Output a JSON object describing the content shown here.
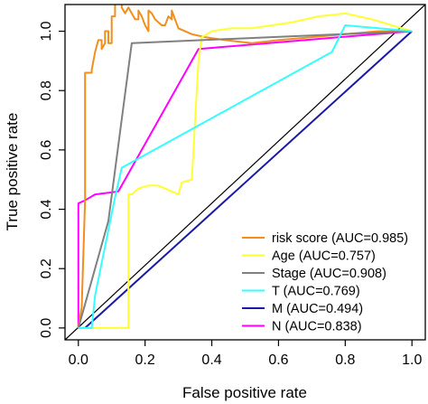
{
  "chart_data": {
    "type": "line",
    "title": "",
    "xlabel": "False positive rate",
    "ylabel": "True positive rate",
    "xlim": [
      -0.04,
      1.04
    ],
    "ylim": [
      -0.04,
      1.09
    ],
    "x_ticks": [
      "0.0",
      "0.2",
      "0.4",
      "0.6",
      "0.8",
      "1.0"
    ],
    "y_ticks": [
      "0.0",
      "0.2",
      "0.4",
      "0.6",
      "0.8",
      "1.0"
    ],
    "grid": false,
    "legend_position": "bottom-right",
    "diagonal": {
      "x": [
        -0.04,
        1.04
      ],
      "y": [
        -0.04,
        1.09
      ],
      "color": "#000000"
    },
    "series": [
      {
        "name": "risk score (AUC=0.985)",
        "color": "#F28E1C",
        "x": [
          0.0,
          0.0,
          0.01,
          0.02,
          0.02,
          0.03,
          0.03,
          0.04,
          0.04,
          0.05,
          0.06,
          0.07,
          0.07,
          0.08,
          0.08,
          0.09,
          0.09,
          0.1,
          0.1,
          0.11,
          0.11,
          0.12,
          0.13,
          0.13,
          0.14,
          0.15,
          0.16,
          0.17,
          0.18,
          0.18,
          0.19,
          0.2,
          0.21,
          0.21,
          0.22,
          0.23,
          0.24,
          0.25,
          0.26,
          0.27,
          0.28,
          0.28,
          0.3,
          0.34,
          0.38,
          0.44,
          0.52,
          0.6,
          0.7,
          0.8,
          0.9,
          1.0
        ],
        "y": [
          0.0,
          0.0,
          0.07,
          0.43,
          0.86,
          0.86,
          0.86,
          0.86,
          0.87,
          0.93,
          0.97,
          0.97,
          0.94,
          0.96,
          1.0,
          1.0,
          0.96,
          0.96,
          1.05,
          1.05,
          1.14,
          1.11,
          1.1,
          1.08,
          1.06,
          1.08,
          1.06,
          1.04,
          1.04,
          1.07,
          1.05,
          1.02,
          1.0,
          1.07,
          1.06,
          1.04,
          1.03,
          1.02,
          1.02,
          1.05,
          1.04,
          1.07,
          1.01,
          0.99,
          0.98,
          0.97,
          0.96,
          0.97,
          0.98,
          0.99,
          1.0,
          1.0
        ]
      },
      {
        "name": "Age (AUC=0.757)",
        "color": "#FFFF33",
        "x": [
          0.0,
          0.15,
          0.15,
          0.16,
          0.18,
          0.21,
          0.24,
          0.28,
          0.3,
          0.31,
          0.34,
          0.35,
          0.36,
          0.37,
          0.4,
          0.46,
          0.52,
          0.58,
          0.64,
          0.72,
          0.8,
          0.88,
          0.94,
          1.0
        ],
        "y": [
          0.0,
          0.0,
          0.45,
          0.45,
          0.47,
          0.48,
          0.48,
          0.46,
          0.45,
          0.49,
          0.5,
          0.7,
          0.9,
          0.98,
          1.0,
          1.01,
          1.01,
          1.02,
          1.03,
          1.05,
          1.06,
          1.04,
          1.02,
          1.0
        ]
      },
      {
        "name": "Stage (AUC=0.908)",
        "color": "#808080",
        "x": [
          0.0,
          0.09,
          0.16,
          1.0
        ],
        "y": [
          0.0,
          0.36,
          0.96,
          1.0
        ]
      },
      {
        "name": "T (AUC=0.769)",
        "color": "#33FFFF",
        "x": [
          0.0,
          0.04,
          0.05,
          0.11,
          0.13,
          0.76,
          0.8,
          1.0
        ],
        "y": [
          0.0,
          0.0,
          0.11,
          0.44,
          0.54,
          0.93,
          1.02,
          1.0
        ]
      },
      {
        "name": "M (AUC=0.494)",
        "color": "#1a1aa6",
        "x": [
          0.0,
          0.02,
          1.0
        ],
        "y": [
          0.0,
          0.0,
          1.0
        ]
      },
      {
        "name": "N (AUC=0.838)",
        "color": "#FF00FF",
        "x": [
          0.0,
          0.0,
          0.02,
          0.05,
          0.12,
          0.36,
          1.0
        ],
        "y": [
          0.0,
          0.42,
          0.43,
          0.45,
          0.46,
          0.94,
          1.0
        ]
      }
    ]
  }
}
